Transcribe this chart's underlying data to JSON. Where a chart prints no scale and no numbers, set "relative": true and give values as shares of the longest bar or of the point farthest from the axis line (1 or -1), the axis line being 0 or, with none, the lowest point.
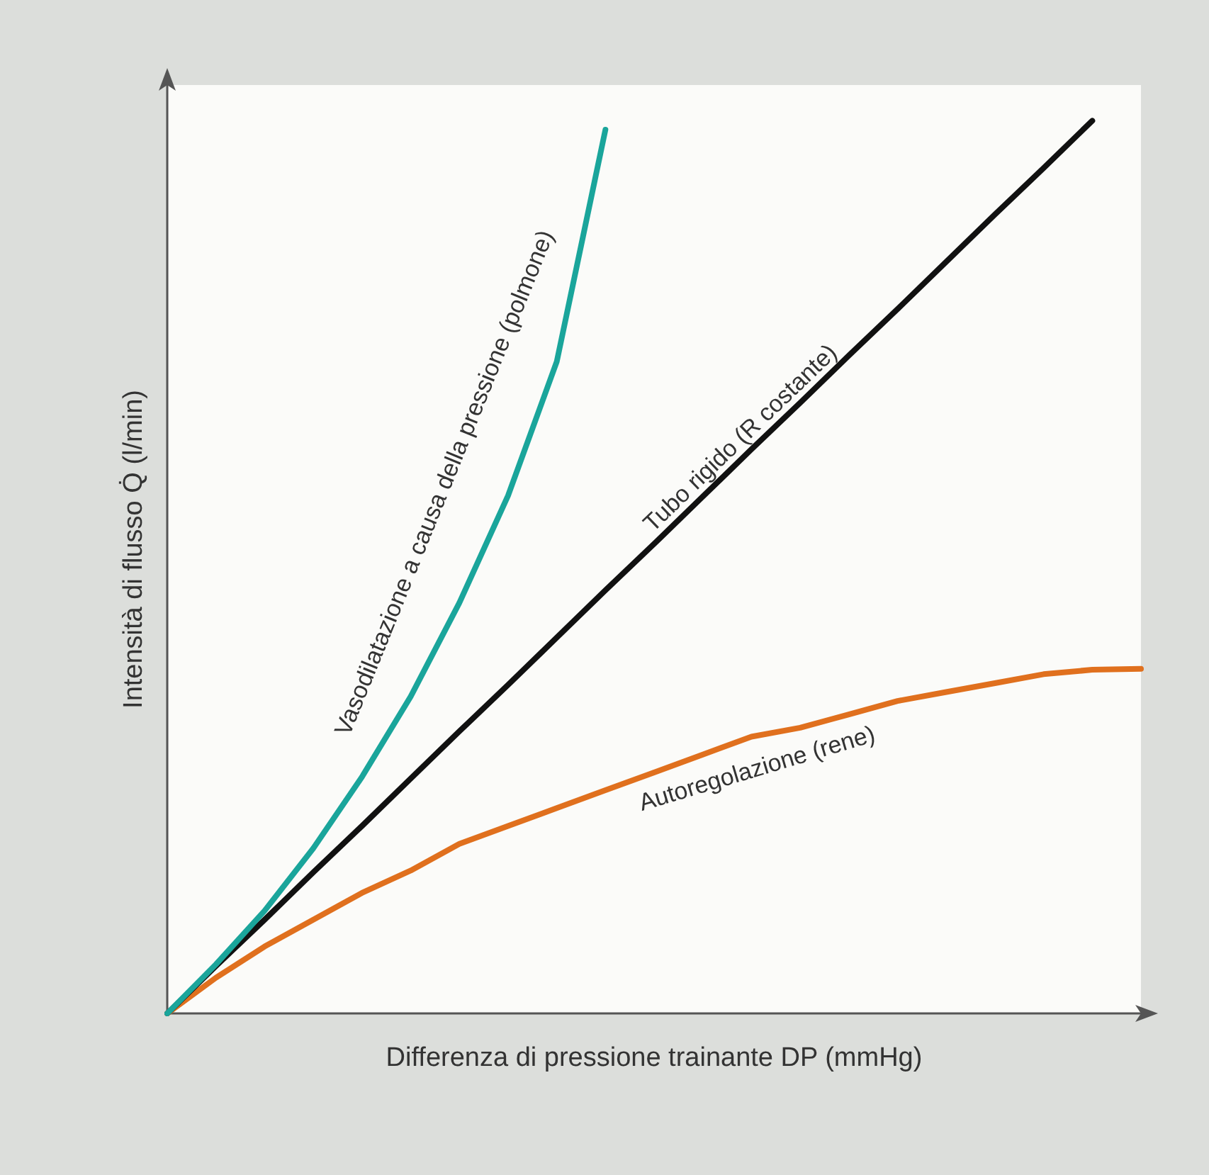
{
  "chart_data": {
    "type": "line",
    "relative": true,
    "xlabel": "Differenza di pressione trainante DP (mmHg)",
    "ylabel": "Intensità di flusso Q̇ (l/min)",
    "categories": [
      null,
      null,
      null,
      null,
      null,
      null,
      null,
      null,
      null,
      null,
      null,
      null,
      null,
      null,
      null,
      null,
      null,
      null,
      null,
      null,
      null
    ],
    "series": [
      {
        "name": "Vasodilatazione a causa della pressione (polmone)",
        "color": "#1aa59b",
        "values": [
          0,
          0.055,
          0.115,
          0.185,
          0.265,
          0.355,
          0.46,
          0.58,
          0.73,
          0.99,
          null,
          null,
          null,
          null,
          null,
          null,
          null,
          null,
          null,
          null,
          null
        ]
      },
      {
        "name": "Tubo rigido (R costante)",
        "color": "#111111",
        "values": [
          0,
          0.053,
          0.105,
          0.158,
          0.21,
          0.263,
          0.316,
          0.368,
          0.421,
          0.474,
          0.526,
          0.579,
          0.632,
          0.684,
          0.737,
          0.789,
          0.842,
          0.895,
          0.947,
          1,
          null
        ]
      },
      {
        "name": "Autoregolazione (rene)",
        "color": "#e0701e",
        "values": [
          0,
          0.04,
          0.075,
          0.105,
          0.135,
          0.16,
          0.19,
          0.21,
          0.23,
          0.25,
          0.27,
          0.29,
          0.31,
          0.32,
          0.335,
          0.35,
          0.36,
          0.37,
          0.38,
          0.385,
          0.386
        ]
      }
    ],
    "grid": false,
    "legend": false,
    "marker": "none",
    "line_style": "solid"
  }
}
